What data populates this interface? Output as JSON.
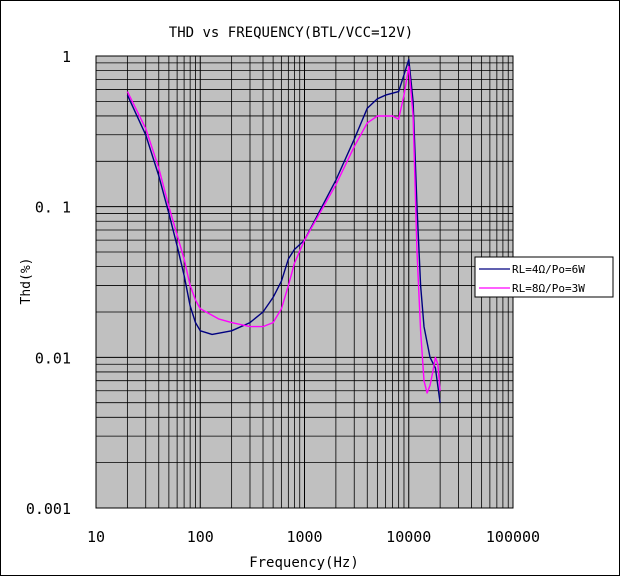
{
  "chart_data": {
    "type": "line",
    "title": "THD vs FREQUENCY(BTL/VCC=12V)",
    "xlabel": "Frequency(Hz)",
    "ylabel": "Thd(%)",
    "xscale": "log",
    "yscale": "log",
    "xlim": [
      10,
      100000
    ],
    "ylim": [
      0.001,
      1
    ],
    "x_ticks": [
      "10",
      "100",
      "1000",
      "10000",
      "100000"
    ],
    "y_ticks": [
      "0.001",
      "0.01",
      "0.1",
      "1"
    ],
    "y_tick_labels": [
      "0.001",
      "0.01",
      "0. 1",
      "1"
    ],
    "grid": true,
    "plot_background": "#c0c0c0",
    "legend_position": "right",
    "series": [
      {
        "name": "RL=4Ω/Po=6W",
        "color": "#000080",
        "points": [
          [
            20,
            0.55
          ],
          [
            30,
            0.3
          ],
          [
            40,
            0.16
          ],
          [
            50,
            0.09
          ],
          [
            60,
            0.055
          ],
          [
            70,
            0.035
          ],
          [
            80,
            0.022
          ],
          [
            90,
            0.017
          ],
          [
            100,
            0.015
          ],
          [
            130,
            0.0142
          ],
          [
            200,
            0.015
          ],
          [
            300,
            0.017
          ],
          [
            400,
            0.02
          ],
          [
            500,
            0.025
          ],
          [
            600,
            0.032
          ],
          [
            700,
            0.045
          ],
          [
            800,
            0.052
          ],
          [
            1000,
            0.06
          ],
          [
            2000,
            0.15
          ],
          [
            3000,
            0.28
          ],
          [
            4000,
            0.45
          ],
          [
            5000,
            0.52
          ],
          [
            6000,
            0.55
          ],
          [
            8000,
            0.58
          ],
          [
            9000,
            0.75
          ],
          [
            10000,
            0.95
          ],
          [
            11000,
            0.5
          ],
          [
            12000,
            0.1
          ],
          [
            13000,
            0.03
          ],
          [
            14000,
            0.016
          ],
          [
            16000,
            0.01
          ],
          [
            18000,
            0.0085
          ],
          [
            20000,
            0.005
          ]
        ]
      },
      {
        "name": "RL=8Ω/Po=3W",
        "color": "#ff00ff",
        "points": [
          [
            20,
            0.58
          ],
          [
            30,
            0.33
          ],
          [
            40,
            0.18
          ],
          [
            50,
            0.1
          ],
          [
            60,
            0.065
          ],
          [
            70,
            0.045
          ],
          [
            80,
            0.03
          ],
          [
            90,
            0.024
          ],
          [
            100,
            0.021
          ],
          [
            150,
            0.018
          ],
          [
            200,
            0.017
          ],
          [
            300,
            0.016
          ],
          [
            400,
            0.016
          ],
          [
            500,
            0.017
          ],
          [
            600,
            0.021
          ],
          [
            700,
            0.03
          ],
          [
            800,
            0.042
          ],
          [
            1000,
            0.06
          ],
          [
            2000,
            0.14
          ],
          [
            3000,
            0.25
          ],
          [
            4000,
            0.36
          ],
          [
            5000,
            0.4
          ],
          [
            7000,
            0.4
          ],
          [
            8000,
            0.38
          ],
          [
            9000,
            0.55
          ],
          [
            10000,
            0.85
          ],
          [
            11000,
            0.4
          ],
          [
            12000,
            0.05
          ],
          [
            13000,
            0.015
          ],
          [
            14000,
            0.007
          ],
          [
            15000,
            0.0058
          ],
          [
            16000,
            0.0065
          ],
          [
            17000,
            0.008
          ],
          [
            18000,
            0.01
          ],
          [
            19000,
            0.009
          ],
          [
            20000,
            0.006
          ]
        ]
      }
    ]
  }
}
